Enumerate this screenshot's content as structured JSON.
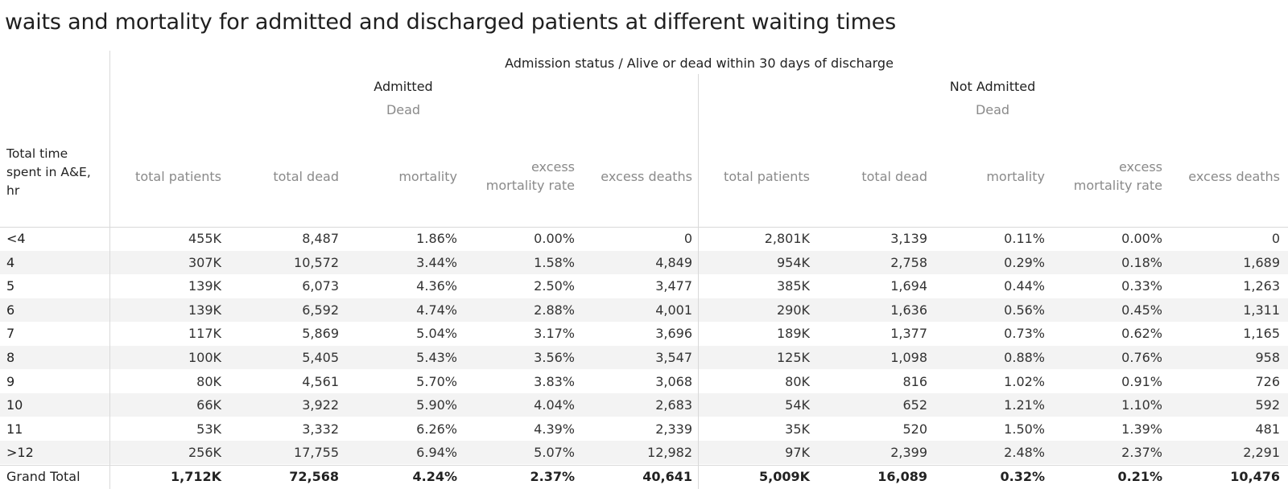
{
  "title": "waits and mortality for admitted and discharged patients at different waiting times",
  "header": {
    "top": "Admission status  /  Alive or dead within 30 days of discharge",
    "row_header": "Total time spent in A&E, hr",
    "groups": [
      {
        "name": "Admitted",
        "sub": "Dead"
      },
      {
        "name": "Not Admitted",
        "sub": "Dead"
      }
    ],
    "columns": [
      "total patients",
      "total dead",
      "mortality",
      "excess mortality rate",
      "excess deaths",
      "total patients",
      "total dead",
      "mortality",
      "excess mortality rate",
      "excess deaths"
    ]
  },
  "chart_data": {
    "type": "table",
    "row_header": "Total time spent in A&E, hr",
    "rows": [
      {
        "label": "<4",
        "values": [
          "455K",
          "8,487",
          "1.86%",
          "0.00%",
          "0",
          "2,801K",
          "3,139",
          "0.11%",
          "0.00%",
          "0"
        ]
      },
      {
        "label": "4",
        "values": [
          "307K",
          "10,572",
          "3.44%",
          "1.58%",
          "4,849",
          "954K",
          "2,758",
          "0.29%",
          "0.18%",
          "1,689"
        ]
      },
      {
        "label": "5",
        "values": [
          "139K",
          "6,073",
          "4.36%",
          "2.50%",
          "3,477",
          "385K",
          "1,694",
          "0.44%",
          "0.33%",
          "1,263"
        ]
      },
      {
        "label": "6",
        "values": [
          "139K",
          "6,592",
          "4.74%",
          "2.88%",
          "4,001",
          "290K",
          "1,636",
          "0.56%",
          "0.45%",
          "1,311"
        ]
      },
      {
        "label": "7",
        "values": [
          "117K",
          "5,869",
          "5.04%",
          "3.17%",
          "3,696",
          "189K",
          "1,377",
          "0.73%",
          "0.62%",
          "1,165"
        ]
      },
      {
        "label": "8",
        "values": [
          "100K",
          "5,405",
          "5.43%",
          "3.56%",
          "3,547",
          "125K",
          "1,098",
          "0.88%",
          "0.76%",
          "958"
        ]
      },
      {
        "label": "9",
        "values": [
          "80K",
          "4,561",
          "5.70%",
          "3.83%",
          "3,068",
          "80K",
          "816",
          "1.02%",
          "0.91%",
          "726"
        ]
      },
      {
        "label": "10",
        "values": [
          "66K",
          "3,922",
          "5.90%",
          "4.04%",
          "2,683",
          "54K",
          "652",
          "1.21%",
          "1.10%",
          "592"
        ]
      },
      {
        "label": "11",
        "values": [
          "53K",
          "3,332",
          "6.26%",
          "4.39%",
          "2,339",
          "35K",
          "520",
          "1.50%",
          "1.39%",
          "481"
        ]
      },
      {
        "label": ">12",
        "values": [
          "256K",
          "17,755",
          "6.94%",
          "5.07%",
          "12,982",
          "97K",
          "2,399",
          "2.48%",
          "2.37%",
          "2,291"
        ]
      }
    ],
    "total": {
      "label": "Grand Total",
      "values": [
        "1,712K",
        "72,568",
        "4.24%",
        "2.37%",
        "40,641",
        "5,009K",
        "16,089",
        "0.32%",
        "0.21%",
        "10,476"
      ]
    }
  }
}
